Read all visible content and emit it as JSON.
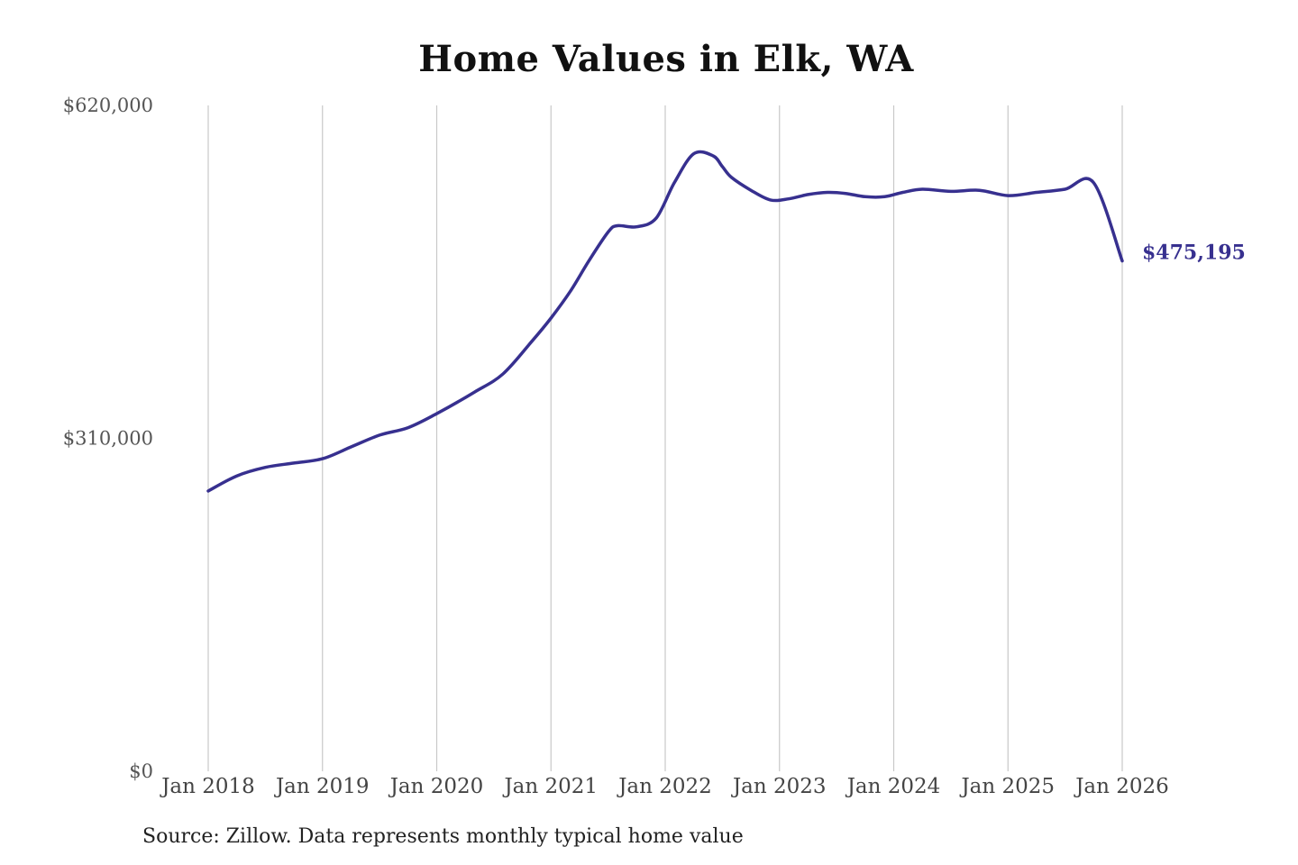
{
  "chart_data": {
    "type": "line",
    "title": "Home Values in Elk, WA",
    "xlabel": "",
    "ylabel": "",
    "ylim": [
      0,
      620000
    ],
    "yticks": [
      {
        "value": 0,
        "label": "$0"
      },
      {
        "value": 310000,
        "label": "$310,000"
      },
      {
        "value": 620000,
        "label": "$620,000"
      }
    ],
    "xticks": [
      {
        "value": 2018,
        "label": "Jan 2018"
      },
      {
        "value": 2019,
        "label": "Jan 2019"
      },
      {
        "value": 2020,
        "label": "Jan 2020"
      },
      {
        "value": 2021,
        "label": "Jan 2021"
      },
      {
        "value": 2022,
        "label": "Jan 2022"
      },
      {
        "value": 2023,
        "label": "Jan 2023"
      },
      {
        "value": 2024,
        "label": "Jan 2024"
      },
      {
        "value": 2025,
        "label": "Jan 2025"
      },
      {
        "value": 2026,
        "label": "Jan 2026"
      }
    ],
    "xlim": [
      2018,
      2026
    ],
    "grid": "vertical",
    "end_label": "$475,195",
    "line_color": "#37308f",
    "series": [
      {
        "name": "",
        "x": [
          2018.0,
          2018.25,
          2018.5,
          2018.75,
          2019.0,
          2019.25,
          2019.5,
          2019.75,
          2020.0,
          2020.33,
          2020.58,
          2020.83,
          2021.0,
          2021.17,
          2021.33,
          2021.5,
          2021.58,
          2021.75,
          2021.92,
          2022.08,
          2022.25,
          2022.42,
          2022.5,
          2022.58,
          2022.75,
          2022.92,
          2023.08,
          2023.25,
          2023.42,
          2023.58,
          2023.75,
          2023.92,
          2024.08,
          2024.25,
          2024.5,
          2024.75,
          2025.0,
          2025.25,
          2025.5,
          2025.75,
          2026.0
        ],
        "y": [
          261000,
          275000,
          283000,
          287000,
          291000,
          302000,
          313000,
          320000,
          333000,
          353000,
          370000,
          400000,
          422000,
          447000,
          475000,
          502000,
          508000,
          507000,
          515000,
          548000,
          575000,
          573000,
          563000,
          553000,
          541000,
          532000,
          533000,
          537000,
          539000,
          538000,
          535000,
          535000,
          539000,
          542000,
          540000,
          541000,
          536000,
          539000,
          542000,
          548000,
          475195
        ]
      }
    ]
  },
  "source_note": "Source: Zillow. Data represents monthly typical home value"
}
